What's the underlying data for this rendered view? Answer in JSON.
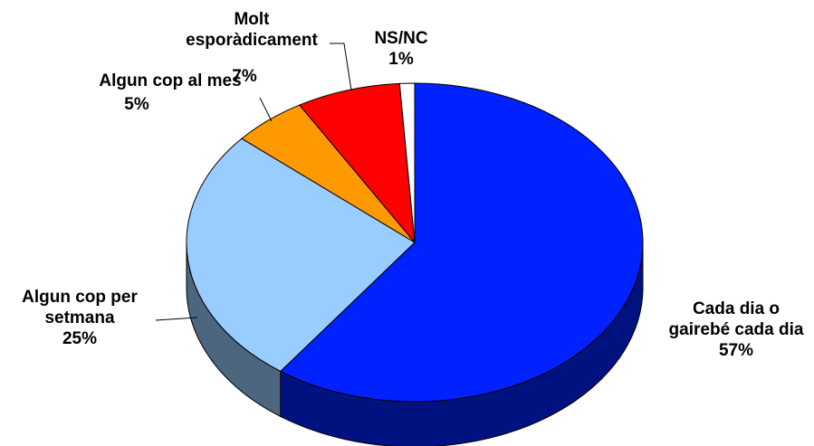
{
  "chart_data": {
    "type": "pie",
    "style": "3d",
    "slices": [
      {
        "label": [
          "Cada dia o",
          "gairebé cada dia"
        ],
        "value": 57,
        "value_label": "57%",
        "color": "#0022FF",
        "side_color": "#00127F"
      },
      {
        "label": [
          "Algun cop per",
          "setmana"
        ],
        "value": 25,
        "value_label": "25%",
        "color": "#99CCFF",
        "side_color": "#4C6680"
      },
      {
        "label": [
          "Algun cop al mes"
        ],
        "value": 5,
        "value_label": "5%",
        "color": "#FF9900",
        "side_color": "#7F4C00"
      },
      {
        "label": [
          "Molt",
          "esporàdicament"
        ],
        "value": 7,
        "value_label": "7%",
        "color": "#FF0000",
        "side_color": "#7F0000"
      },
      {
        "label": [
          "NS/NC"
        ],
        "value": 1,
        "value_label": "1%",
        "color": "#FFFFFF",
        "side_color": "#7F7F7F"
      }
    ]
  }
}
